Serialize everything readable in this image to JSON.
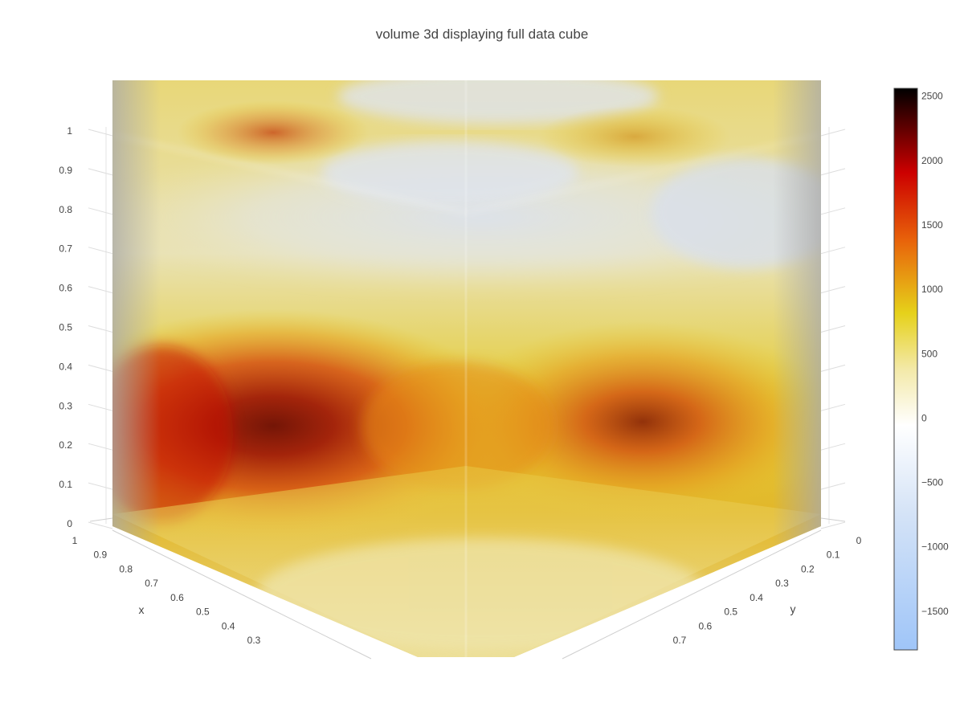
{
  "chart_data": {
    "type": "volume",
    "title": "volume 3d displaying full data cube",
    "z_axis": {
      "title": "",
      "ticks": [
        "0",
        "0.1",
        "0.2",
        "0.3",
        "0.4",
        "0.5",
        "0.6",
        "0.7",
        "0.8",
        "0.9",
        "1"
      ],
      "range": [
        0,
        1
      ]
    },
    "x_axis": {
      "title": "x",
      "ticks": [
        "1",
        "0.9",
        "0.8",
        "0.7",
        "0.6",
        "0.5",
        "0.4",
        "0.3"
      ],
      "range": [
        0.25,
        1
      ]
    },
    "y_axis": {
      "title": "y",
      "ticks": [
        "0",
        "0.1",
        "0.2",
        "0.3",
        "0.4",
        "0.5",
        "0.6",
        "0.7"
      ],
      "range": [
        0,
        0.75
      ]
    },
    "colorbar": {
      "ticks": [
        "2500",
        "2000",
        "1500",
        "1000",
        "500",
        "0",
        "−500",
        "−1000",
        "−1500"
      ],
      "tick_values": [
        2500,
        2000,
        1500,
        1000,
        500,
        0,
        -500,
        -1000,
        -1500
      ],
      "range": [
        -1800,
        2560
      ],
      "colorscale": [
        [
          0.0,
          "#9fc5f8"
        ],
        [
          0.25,
          "#d6e4f7"
        ],
        [
          0.4,
          "#ffffff"
        ],
        [
          0.5,
          "#f3e9a8"
        ],
        [
          0.6,
          "#e6d11a"
        ],
        [
          0.73,
          "#e8620a"
        ],
        [
          0.85,
          "#cc0000"
        ],
        [
          1.0,
          "#000000"
        ]
      ]
    }
  }
}
